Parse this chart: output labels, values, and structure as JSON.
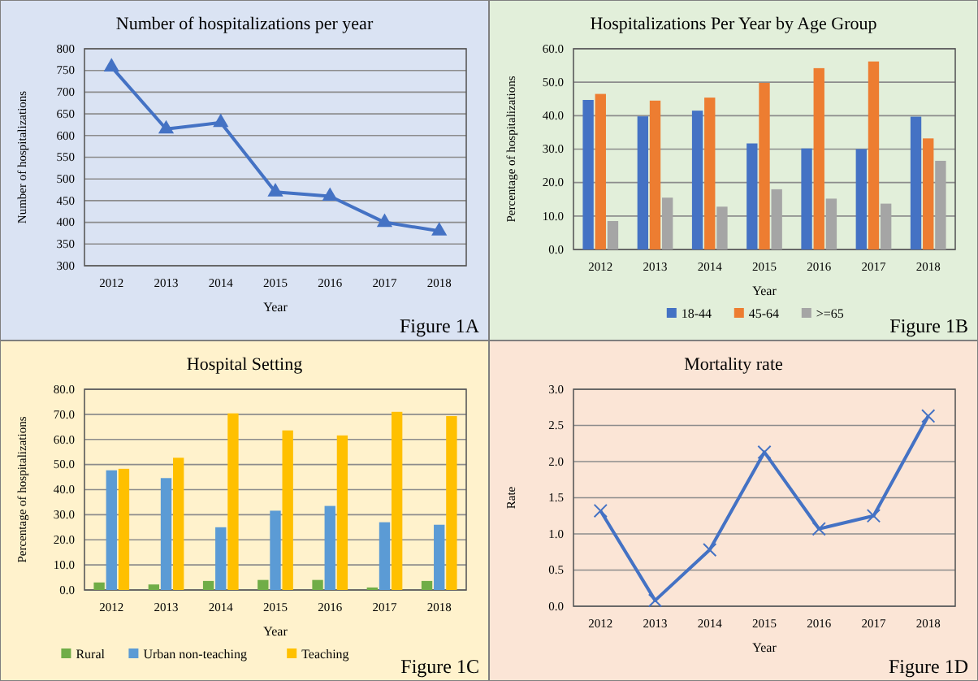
{
  "chart_data": [
    {
      "type": "line",
      "title": "Number of hospitalizations  per year",
      "xlabel": "Year",
      "ylabel": "Number of hospitalizations",
      "categories": [
        "2012",
        "2013",
        "2014",
        "2015",
        "2016",
        "2017",
        "2018"
      ],
      "series": [
        {
          "color": "#4472c4",
          "values": [
            758,
            615,
            630,
            470,
            460,
            400,
            380
          ]
        }
      ],
      "ylim": [
        300,
        800
      ],
      "yticks": [
        300,
        350,
        400,
        450,
        500,
        550,
        600,
        650,
        700,
        750,
        800
      ],
      "grid": "y",
      "marker": "triangle",
      "legend": false,
      "annotations": [
        "Figure 1A"
      ]
    },
    {
      "type": "bar",
      "title": "Hospitalizations  Per Year by Age Group",
      "xlabel": "Year",
      "ylabel": "Percentage of hospitalizations",
      "categories": [
        "2012",
        "2013",
        "2014",
        "2015",
        "2016",
        "2017",
        "2018"
      ],
      "series": [
        {
          "name": "18-44",
          "color": "#4472c4",
          "values": [
            44.7,
            39.8,
            41.5,
            31.7,
            30.2,
            30.0,
            39.7
          ]
        },
        {
          "name": "45-64",
          "color": "#ed7d31",
          "values": [
            46.5,
            44.5,
            45.4,
            49.8,
            54.2,
            56.2,
            33.2
          ]
        },
        {
          "name": ">=65",
          "color": "#a5a5a5",
          "values": [
            8.5,
            15.5,
            12.8,
            18.0,
            15.2,
            13.7,
            26.5
          ]
        }
      ],
      "ylim": [
        0,
        60
      ],
      "yticks": [
        {
          "value": 0,
          "label": "0.0"
        },
        {
          "value": 10,
          "label": "10.0"
        },
        {
          "value": 20,
          "label": "20.0"
        },
        {
          "value": 30,
          "label": "30.0"
        },
        {
          "value": 40,
          "label": "40.0"
        },
        {
          "value": 50,
          "label": "50.0"
        },
        {
          "value": 60,
          "label": "60.0"
        }
      ],
      "grid": "y",
      "legend": "bottom",
      "annotations": [
        "Figure 1B"
      ]
    },
    {
      "type": "bar",
      "title": "Hospital Setting",
      "xlabel": "Year",
      "ylabel": "Percentage of hospitalizations",
      "categories": [
        "2012",
        "2013",
        "2014",
        "2015",
        "2016",
        "2017",
        "2018"
      ],
      "series": [
        {
          "name": "Rural",
          "color": "#70ad47",
          "values": [
            3.0,
            2.2,
            3.6,
            4.0,
            4.0,
            1.0,
            3.6
          ]
        },
        {
          "name": "Urban non-teaching",
          "color": "#5b9bd5",
          "values": [
            47.7,
            44.6,
            25.0,
            31.6,
            33.5,
            27.0,
            26.0
          ]
        },
        {
          "name": "Teaching",
          "color": "#ffc000",
          "values": [
            48.3,
            52.7,
            70.4,
            63.6,
            61.6,
            71.0,
            69.3
          ]
        }
      ],
      "ylim": [
        0,
        80
      ],
      "yticks": [
        {
          "value": 0,
          "label": "0.0"
        },
        {
          "value": 10,
          "label": "10.0"
        },
        {
          "value": 20,
          "label": "20.0"
        },
        {
          "value": 30,
          "label": "30.0"
        },
        {
          "value": 40,
          "label": "40.0"
        },
        {
          "value": 50,
          "label": "50.0"
        },
        {
          "value": 60,
          "label": "60.0"
        },
        {
          "value": 70,
          "label": "70.0"
        },
        {
          "value": 80,
          "label": "80.0"
        }
      ],
      "grid": "y",
      "legend": "bottom",
      "annotations": [
        "Figure 1C"
      ]
    },
    {
      "type": "line",
      "title": "Mortality rate",
      "xlabel": "Year",
      "ylabel": "Rate",
      "categories": [
        "2012",
        "2013",
        "2014",
        "2015",
        "2016",
        "2017",
        "2018"
      ],
      "series": [
        {
          "color": "#4472c4",
          "values": [
            1.32,
            0.08,
            0.78,
            2.13,
            1.07,
            1.25,
            2.63
          ]
        }
      ],
      "ylim": [
        0,
        3
      ],
      "yticks": [
        {
          "value": 0,
          "label": "0.0"
        },
        {
          "value": 0.5,
          "label": "0.5"
        },
        {
          "value": 1,
          "label": "1.0"
        },
        {
          "value": 1.5,
          "label": "1.5"
        },
        {
          "value": 2,
          "label": "2.0"
        },
        {
          "value": 2.5,
          "label": "2.5"
        },
        {
          "value": 3,
          "label": "3.0"
        }
      ],
      "grid": "y",
      "marker": "cross",
      "legend": false,
      "annotations": [
        "Figure 1D"
      ]
    }
  ]
}
